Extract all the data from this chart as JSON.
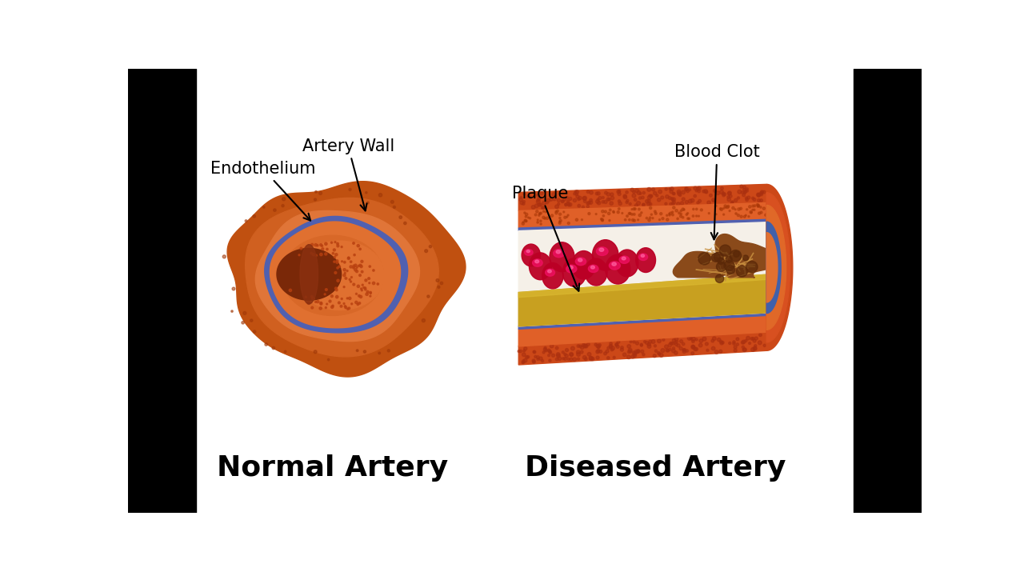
{
  "background_color": "#ffffff",
  "black_bar_color": "#000000",
  "label_normal_artery": "Normal Artery",
  "label_diseased_artery": "Diseased Artery",
  "label_artery_wall": "Artery Wall",
  "label_endothelium": "Endothelium",
  "label_plaque": "Plaque",
  "label_blood_clot": "Blood Clot",
  "orange_wall_dark": "#c05010",
  "orange_wall_mid": "#d06020",
  "orange_wall_light": "#e07830",
  "orange_inner_dark": "#b84010",
  "orange_inner_mid": "#cc5518",
  "orange_inner_light": "#e07030",
  "orange_lumen": "#cc4a10",
  "orange_lumen_light": "#e86030",
  "orange_front": "#d85a20",
  "blue_line": "#5060b0",
  "red_wall": "#cc2010",
  "red_wall_dark": "#aa1808",
  "yellow_plaque": "#c8a020",
  "yellow_plaque_light": "#dab030",
  "red_blood_dark": "#aa0020",
  "red_blood_mid": "#cc1030",
  "red_blood_bright": "#ee2050",
  "clot_brown": "#8a4a1a",
  "clot_dark": "#6a3010",
  "clot_gold": "#c89040",
  "title_fontsize": 26,
  "annotation_fontsize": 15
}
